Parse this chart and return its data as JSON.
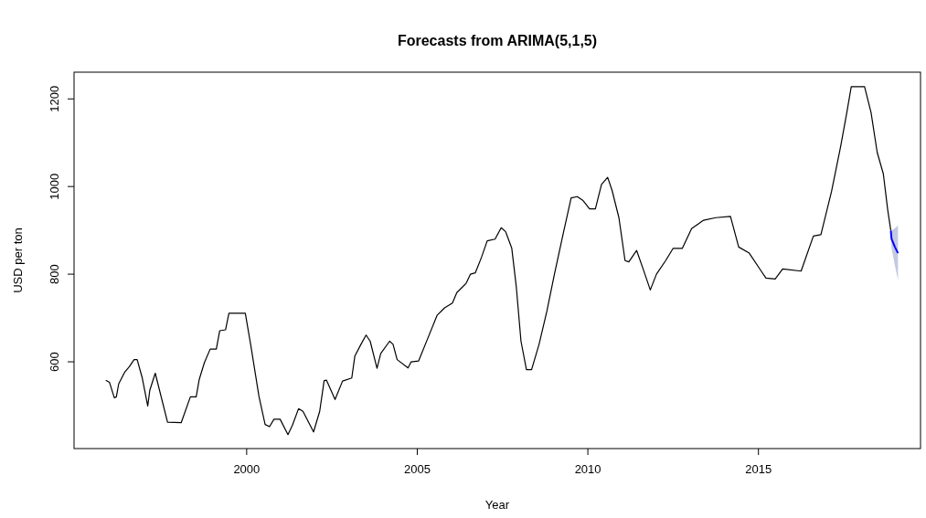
{
  "chart_data": {
    "type": "line",
    "title": "Forecasts from ARIMA(5,1,5)",
    "xlabel": "Year",
    "ylabel": "USD per ton",
    "xlim": [
      1994.94,
      2019.75
    ],
    "xticks": [
      2000,
      2005,
      2010,
      2015
    ],
    "ylim": [
      402,
      1261
    ],
    "yticks": [
      600,
      800,
      1000,
      1200
    ],
    "grid": false,
    "series": [
      {
        "color": "#000000",
        "x": [
          1995.87,
          1995.98,
          1996.12,
          1996.18,
          1996.25,
          1996.43,
          1996.56,
          1996.7,
          1996.79,
          1996.94,
          1997.1,
          1997.16,
          1997.32,
          1997.68,
          1998.08,
          1998.35,
          1998.52,
          1998.61,
          1998.76,
          1998.93,
          1999.11,
          1999.21,
          1999.38,
          1999.48,
          1999.96,
          2000.13,
          2000.36,
          2000.54,
          2000.67,
          2000.8,
          2000.98,
          2001.21,
          2001.34,
          2001.52,
          2001.65,
          2001.96,
          2002.14,
          2002.27,
          2002.34,
          2002.59,
          2002.81,
          2003.08,
          2003.17,
          2003.35,
          2003.5,
          2003.62,
          2003.82,
          2003.93,
          2004.19,
          2004.29,
          2004.41,
          2004.73,
          2004.82,
          2005.04,
          2005.31,
          2005.58,
          2005.8,
          2006.03,
          2006.16,
          2006.43,
          2006.56,
          2006.7,
          2006.88,
          2007.05,
          2007.28,
          2007.46,
          2007.59,
          2007.77,
          2007.9,
          2008.04,
          2008.2,
          2008.35,
          2008.57,
          2008.8,
          2009.02,
          2009.29,
          2009.51,
          2009.69,
          2009.86,
          2010.05,
          2010.22,
          2010.4,
          2010.58,
          2010.71,
          2010.91,
          2011.09,
          2011.2,
          2011.43,
          2011.61,
          2011.83,
          2012.01,
          2012.28,
          2012.5,
          2012.77,
          2013.04,
          2013.39,
          2013.75,
          2014.18,
          2014.42,
          2014.73,
          2015.09,
          2015.22,
          2015.49,
          2015.71,
          2016.25,
          2016.61,
          2016.83,
          2017.14,
          2017.41,
          2017.59,
          2017.72,
          2018.11,
          2018.3,
          2018.48,
          2018.66,
          2018.79,
          2018.88
        ],
        "values": [
          558,
          553,
          518,
          520,
          550,
          577,
          589,
          605,
          605,
          563,
          499,
          535,
          574,
          462,
          461,
          520,
          520,
          560,
          598,
          629,
          629,
          671,
          673,
          711,
          711,
          633,
          521,
          457,
          452,
          469,
          469,
          434,
          455,
          493,
          487,
          440,
          487,
          557,
          558,
          514,
          556,
          563,
          613,
          640,
          661,
          647,
          585,
          619,
          647,
          640,
          605,
          586,
          600,
          602,
          654,
          706,
          723,
          734,
          758,
          779,
          800,
          803,
          838,
          876,
          880,
          906,
          897,
          859,
          773,
          647,
          582,
          582,
          640,
          716,
          800,
          897,
          974,
          977,
          968,
          949,
          949,
          1005,
          1021,
          991,
          929,
          831,
          828,
          854,
          814,
          764,
          800,
          831,
          859,
          859,
          904,
          923,
          929,
          932,
          862,
          848,
          806,
          791,
          789,
          812,
          807,
          887,
          890,
          988,
          1092,
          1169,
          1228,
          1228,
          1169,
          1078,
          1029,
          946,
          899
        ]
      },
      {
        "color": "#0000ff",
        "x": [
          2018.88,
          2018.9,
          2019.0,
          2019.09
        ],
        "values": [
          899,
          881,
          862,
          848
        ],
        "lower": [
          899,
          860,
          820,
          786
        ],
        "upper": [
          899,
          900,
          905,
          911
        ]
      }
    ]
  }
}
